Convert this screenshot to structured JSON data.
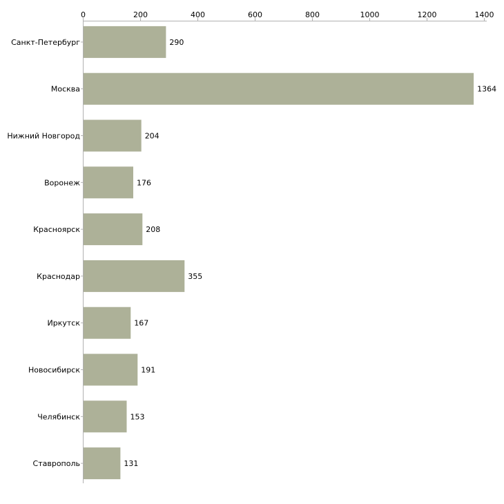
{
  "chart_data": {
    "type": "bar",
    "orientation": "horizontal",
    "title": "",
    "xlabel": "",
    "ylabel": "",
    "xlim": [
      0,
      1400
    ],
    "x_ticks": [
      0,
      200,
      400,
      600,
      800,
      1000,
      1200,
      1400
    ],
    "grid": false,
    "legend": "none",
    "bar_color": "#adb198",
    "categories": [
      "Санкт-Петербург",
      "Москва",
      "Нижний Новгород",
      "Воронеж",
      "Красноярск",
      "Краснодар",
      "Иркутск",
      "Новосибирск",
      "Челябинск",
      "Ставрополь"
    ],
    "values": [
      290,
      1364,
      204,
      176,
      208,
      355,
      167,
      191,
      153,
      131
    ]
  }
}
